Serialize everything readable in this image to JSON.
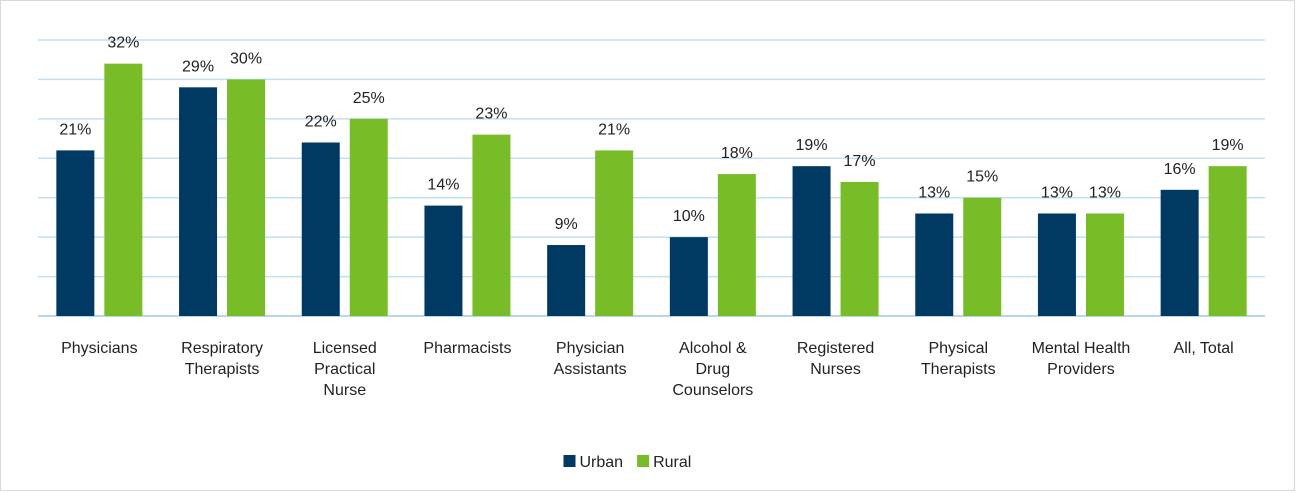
{
  "chart_data": {
    "type": "bar",
    "categories": [
      "Physicians",
      "Respiratory Therapists",
      "Licensed Practical Nurse",
      "Pharmacists",
      "Physician Assistants",
      "Alcohol & Drug Counselors",
      "Registered Nurses",
      "Physical Therapists",
      "Mental Health Providers",
      "All, Total"
    ],
    "series": [
      {
        "name": "Urban",
        "color": "#003a63",
        "values": [
          21,
          29,
          22,
          14,
          9,
          10,
          19,
          13,
          13,
          16
        ],
        "value_labels": [
          "21%",
          "29%",
          "22%",
          "14%",
          "9%",
          "10%",
          "19%",
          "13%",
          "13%",
          "16%"
        ]
      },
      {
        "name": "Rural",
        "color": "#78bc28",
        "values": [
          32,
          30,
          25,
          23,
          21,
          18,
          17,
          15,
          13,
          19
        ],
        "value_labels": [
          "32%",
          "30%",
          "25%",
          "23%",
          "21%",
          "18%",
          "17%",
          "15%",
          "13%",
          "19%"
        ]
      }
    ],
    "ylim": [
      0,
      35
    ],
    "yticks": [
      0,
      5,
      10,
      15,
      20,
      25,
      30,
      35
    ],
    "grid": true,
    "legend": "bottom"
  }
}
